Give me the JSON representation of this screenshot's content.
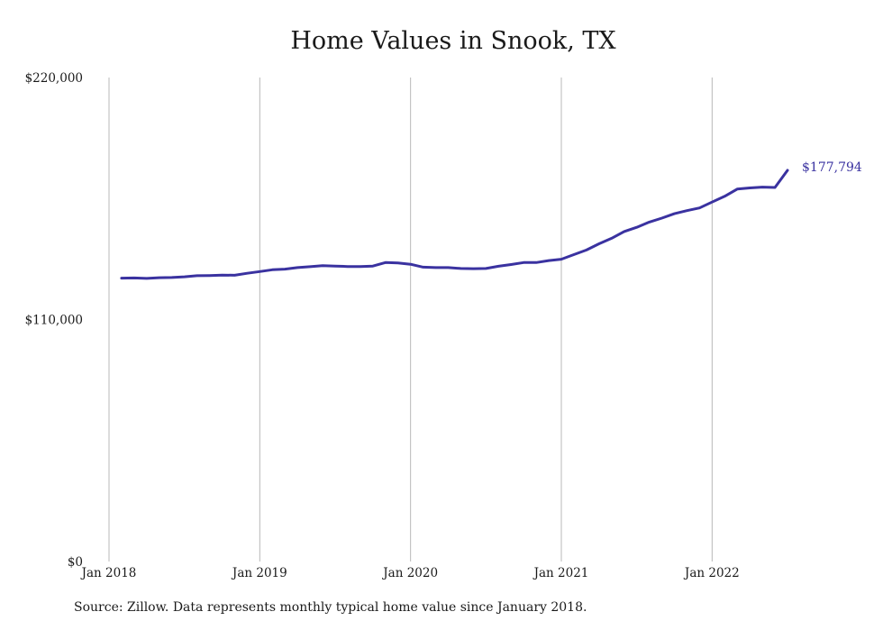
{
  "chart_data": {
    "type": "line",
    "title": "Home Values in Snook, TX",
    "source": "Source: Zillow. Data represents monthly typical home value since January 2018.",
    "xlabel": "",
    "ylabel": "",
    "xlim": [
      "2018-01",
      "2022-07"
    ],
    "ylim": [
      0,
      220000
    ],
    "grid": "vertical",
    "line_color": "#3a32a0",
    "x_ticks": [
      {
        "month": "2018-01",
        "label": "Jan 2018"
      },
      {
        "month": "2019-01",
        "label": "Jan 2019"
      },
      {
        "month": "2020-01",
        "label": "Jan 2020"
      },
      {
        "month": "2021-01",
        "label": "Jan 2021"
      },
      {
        "month": "2022-01",
        "label": "Jan 2022"
      }
    ],
    "y_ticks": [
      {
        "value": 0,
        "label": "$0"
      },
      {
        "value": 110000,
        "label": "$110,000"
      },
      {
        "value": 220000,
        "label": "$220,000"
      }
    ],
    "end_label": "$177,794",
    "series": [
      {
        "x": [
          "2018-02",
          "2018-03",
          "2018-04",
          "2018-05",
          "2018-06",
          "2018-07",
          "2018-08",
          "2018-09",
          "2018-10",
          "2018-11",
          "2018-12",
          "2019-01",
          "2019-02",
          "2019-03",
          "2019-04",
          "2019-05",
          "2019-06",
          "2019-07",
          "2019-08",
          "2019-09",
          "2019-10",
          "2019-11",
          "2019-12",
          "2020-01",
          "2020-02",
          "2020-03",
          "2020-04",
          "2020-05",
          "2020-06",
          "2020-07",
          "2020-08",
          "2020-09",
          "2020-10",
          "2020-11",
          "2020-12",
          "2021-01",
          "2021-02",
          "2021-03",
          "2021-04",
          "2021-05",
          "2021-06",
          "2021-07",
          "2021-08",
          "2021-09",
          "2021-10",
          "2021-11",
          "2021-12",
          "2022-01",
          "2022-02",
          "2022-03",
          "2022-04",
          "2022-05",
          "2022-06",
          "2022-07"
        ],
        "values": [
          128800,
          128900,
          128700,
          129000,
          129100,
          129400,
          129900,
          130000,
          130200,
          130100,
          131000,
          131800,
          132600,
          132900,
          133600,
          134000,
          134500,
          134300,
          134100,
          134100,
          134300,
          135900,
          135700,
          135100,
          133800,
          133600,
          133600,
          133200,
          133100,
          133200,
          134200,
          135000,
          135900,
          135900,
          136800,
          137400,
          139500,
          141600,
          144400,
          146900,
          150000,
          151900,
          154300,
          156100,
          158100,
          159500,
          160700,
          163400,
          166000,
          169300,
          169800,
          170200,
          170000,
          177794
        ]
      }
    ]
  }
}
